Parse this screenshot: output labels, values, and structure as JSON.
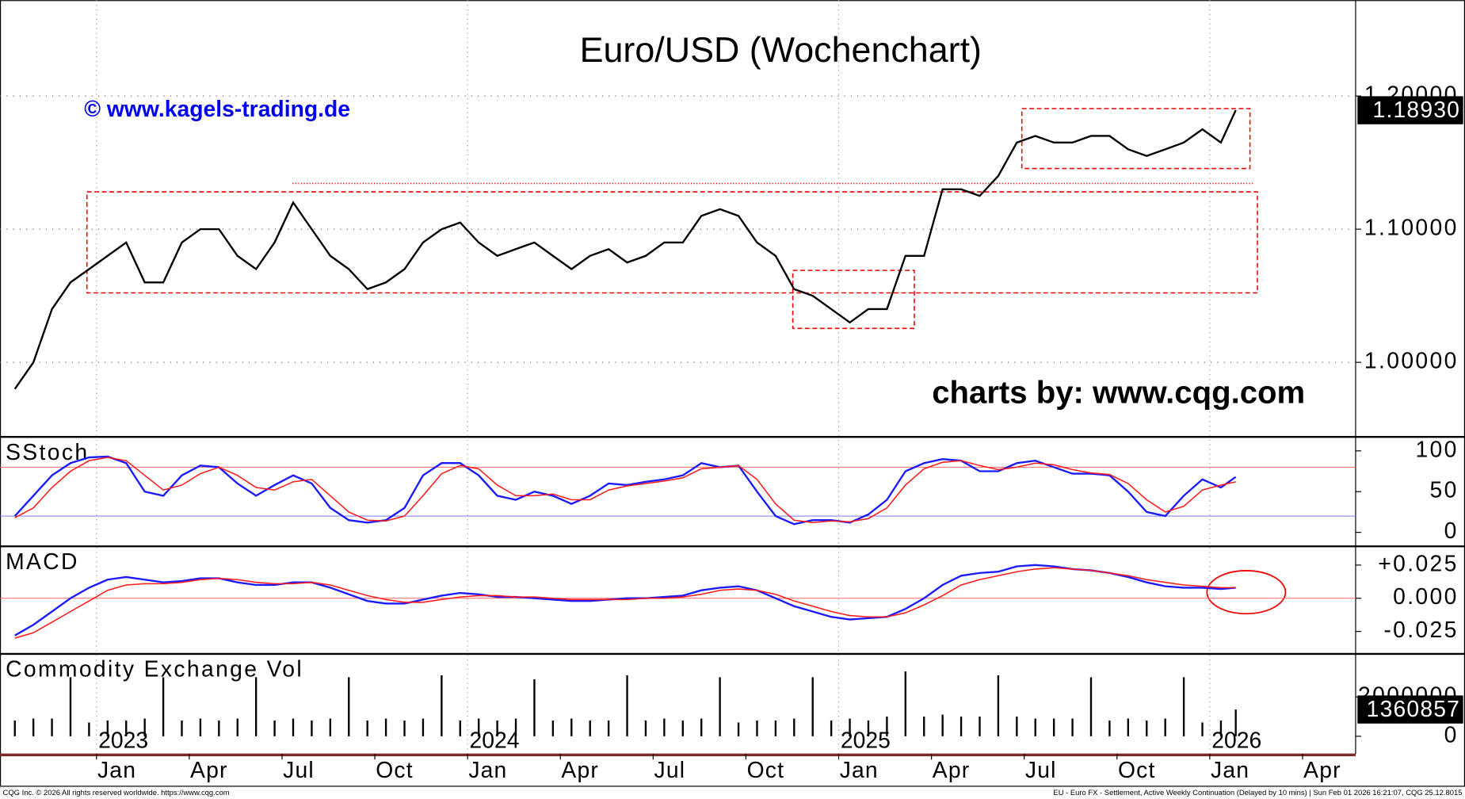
{
  "chart_data": {
    "type": "line",
    "title": "Euro/USD (Wochenchart)",
    "annotations": [
      "© www.kagels-trading.de",
      "charts by: www.cqg.com"
    ],
    "footer": [
      "CQG Inc. © 2026 All rights reserved worldwide. https://www.cqg.com",
      "EU - Euro FX - Settlement, Active Weekly Continuation (Delayed by 10 mins) | Sun Feb 01 2026 16:21:07, CQG 25.12.8015"
    ],
    "x": [
      2022.78,
      2022.83,
      2022.88,
      2022.93,
      2022.98,
      2023.03,
      2023.08,
      2023.13,
      2023.18,
      2023.23,
      2023.28,
      2023.33,
      2023.38,
      2023.43,
      2023.48,
      2023.53,
      2023.58,
      2023.63,
      2023.68,
      2023.73,
      2023.78,
      2023.83,
      2023.88,
      2023.93,
      2023.98,
      2024.03,
      2024.08,
      2024.13,
      2024.18,
      2024.23,
      2024.28,
      2024.33,
      2024.38,
      2024.43,
      2024.48,
      2024.53,
      2024.58,
      2024.63,
      2024.68,
      2024.73,
      2024.78,
      2024.83,
      2024.88,
      2024.93,
      2024.98,
      2025.03,
      2025.08,
      2025.13,
      2025.18,
      2025.23,
      2025.28,
      2025.33,
      2025.38,
      2025.43,
      2025.48,
      2025.53,
      2025.58,
      2025.63,
      2025.68,
      2025.73,
      2025.78,
      2025.83,
      2025.88,
      2025.93,
      2025.98,
      2026.03,
      2026.07
    ],
    "xlim": [
      2022.74,
      2026.393
    ],
    "xticks": [
      {
        "value": 2023,
        "label": "Jan"
      },
      {
        "value": 2023.25,
        "label": "Apr"
      },
      {
        "value": 2023.5,
        "label": "Jul"
      },
      {
        "value": 2023.75,
        "label": "Oct"
      },
      {
        "value": 2024,
        "label": "Jan"
      },
      {
        "value": 2024.25,
        "label": "Apr"
      },
      {
        "value": 2024.5,
        "label": "Jul"
      },
      {
        "value": 2024.75,
        "label": "Oct"
      },
      {
        "value": 2025,
        "label": "Jan"
      },
      {
        "value": 2025.25,
        "label": "Apr"
      },
      {
        "value": 2025.5,
        "label": "Jul"
      },
      {
        "value": 2025.75,
        "label": "Oct"
      },
      {
        "value": 2026,
        "label": "Jan"
      },
      {
        "value": 2026.25,
        "label": "Apr"
      }
    ],
    "years": [
      2023,
      2024,
      2025,
      2026
    ],
    "panels": [
      {
        "type": "line",
        "ylim": [
          0.944,
          1.272
        ],
        "yticks": [
          {
            "value": 1.0,
            "label": "1.00000"
          },
          {
            "value": 1.1,
            "label": "1.10000"
          },
          {
            "value": 1.2,
            "label": "1.20000"
          }
        ],
        "grid": true,
        "last_value": {
          "value": 1.1893,
          "label": "1.18930"
        },
        "series": [
          {
            "color": "#000000",
            "values": [
              0.98,
              1.0,
              1.04,
              1.06,
              1.07,
              1.08,
              1.09,
              1.06,
              1.06,
              1.09,
              1.1,
              1.1,
              1.08,
              1.07,
              1.09,
              1.12,
              1.1,
              1.08,
              1.07,
              1.055,
              1.06,
              1.07,
              1.09,
              1.1,
              1.105,
              1.09,
              1.08,
              1.085,
              1.09,
              1.08,
              1.07,
              1.08,
              1.085,
              1.075,
              1.08,
              1.09,
              1.09,
              1.11,
              1.115,
              1.11,
              1.09,
              1.08,
              1.055,
              1.05,
              1.04,
              1.03,
              1.04,
              1.04,
              1.08,
              1.08,
              1.13,
              1.13,
              1.125,
              1.14,
              1.165,
              1.17,
              1.165,
              1.165,
              1.17,
              1.17,
              1.16,
              1.155,
              1.16,
              1.165,
              1.175,
              1.165,
              1.1893
            ]
          }
        ]
      },
      {
        "type": "line",
        "label": "SStoch",
        "ylim": [
          -16,
          116
        ],
        "yticks": [
          0,
          50,
          100
        ],
        "reference_lines": [
          {
            "value": 80,
            "color": "#ff6666"
          },
          {
            "value": 20,
            "color": "#6666ff"
          }
        ],
        "series": [
          {
            "color": "#1a1aff",
            "values": [
              20,
              45,
              70,
              85,
              92,
              93,
              85,
              50,
              45,
              70,
              82,
              80,
              60,
              45,
              58,
              70,
              60,
              30,
              15,
              12,
              15,
              30,
              70,
              85,
              85,
              70,
              45,
              40,
              50,
              45,
              35,
              45,
              60,
              58,
              62,
              65,
              70,
              85,
              80,
              82,
              50,
              20,
              10,
              15,
              15,
              12,
              22,
              40,
              75,
              85,
              90,
              88,
              75,
              75,
              85,
              88,
              80,
              72,
              72,
              70,
              50,
              25,
              20,
              45,
              65,
              55,
              68
            ]
          },
          {
            "color": "#ff1a1a",
            "values": [
              18,
              30,
              55,
              75,
              88,
              92,
              88,
              70,
              52,
              58,
              72,
              80,
              70,
              55,
              52,
              62,
              65,
              45,
              25,
              15,
              14,
              20,
              45,
              72,
              82,
              78,
              58,
              45,
              45,
              47,
              40,
              40,
              52,
              57,
              60,
              63,
              67,
              78,
              80,
              82,
              65,
              35,
              15,
              12,
              14,
              13,
              17,
              30,
              58,
              78,
              86,
              88,
              82,
              77,
              80,
              85,
              83,
              77,
              73,
              71,
              60,
              40,
              25,
              32,
              52,
              58,
              62
            ]
          }
        ]
      },
      {
        "type": "line",
        "label": "MACD",
        "ylim": [
          -0.0412,
          0.0384
        ],
        "yticks": [
          {
            "value": -0.025,
            "label": "-0.025"
          },
          {
            "value": 0,
            "label": "0.000"
          },
          {
            "value": 0.025,
            "label": "+0.025"
          }
        ],
        "reference_lines": [
          {
            "value": 0,
            "color": "#ff6666"
          }
        ],
        "series": [
          {
            "color": "#1a1aff",
            "values": [
              -0.028,
              -0.02,
              -0.01,
              0,
              0.008,
              0.014,
              0.016,
              0.014,
              0.012,
              0.013,
              0.015,
              0.015,
              0.012,
              0.01,
              0.01,
              0.012,
              0.012,
              0.008,
              0.003,
              -0.002,
              -0.004,
              -0.004,
              -0.001,
              0.002,
              0.004,
              0.003,
              0.001,
              0.001,
              0,
              -0.001,
              -0.002,
              -0.002,
              -0.001,
              0,
              0,
              0.001,
              0.002,
              0.006,
              0.008,
              0.009,
              0.006,
              0,
              -0.006,
              -0.01,
              -0.014,
              -0.016,
              -0.015,
              -0.014,
              -0.008,
              0,
              0.01,
              0.017,
              0.019,
              0.02,
              0.024,
              0.025,
              0.024,
              0.022,
              0.021,
              0.019,
              0.016,
              0.012,
              0.009,
              0.008,
              0.008,
              0.007,
              0.008
            ]
          },
          {
            "color": "#ff1a1a",
            "values": [
              -0.03,
              -0.026,
              -0.018,
              -0.01,
              -0.002,
              0.006,
              0.01,
              0.011,
              0.011,
              0.012,
              0.014,
              0.015,
              0.014,
              0.012,
              0.011,
              0.011,
              0.012,
              0.01,
              0.006,
              0.002,
              -0.001,
              -0.003,
              -0.003,
              -0.001,
              0.001,
              0.002,
              0.002,
              0.001,
              0.001,
              0,
              -0.001,
              -0.001,
              -0.001,
              -0.001,
              0,
              0,
              0.001,
              0.003,
              0.006,
              0.007,
              0.006,
              0.003,
              -0.002,
              -0.006,
              -0.01,
              -0.013,
              -0.014,
              -0.014,
              -0.011,
              -0.005,
              0.002,
              0.01,
              0.014,
              0.017,
              0.02,
              0.022,
              0.023,
              0.022,
              0.021,
              0.019,
              0.017,
              0.014,
              0.012,
              0.01,
              0.009,
              0.008,
              0.008
            ]
          }
        ]
      },
      {
        "type": "bar",
        "label": "Commodity Exchange Vol",
        "ylim": [
          -900000,
          4140000
        ],
        "yticks": [
          0,
          2000000
        ],
        "last_value": {
          "value": 1360857,
          "label": "1360857"
        },
        "series": [
          {
            "color": "#000000",
            "values": [
              800000,
              900000,
              900000,
              3000000,
              700000,
              800000,
              800000,
              900000,
              3000000,
              800000,
              900000,
              800000,
              900000,
              3000000,
              800000,
              900000,
              800000,
              900000,
              3000000,
              800000,
              900000,
              800000,
              900000,
              3100000,
              800000,
              900000,
              800000,
              900000,
              2900000,
              800000,
              900000,
              800000,
              800000,
              3100000,
              800000,
              900000,
              800000,
              900000,
              3000000,
              700000,
              800000,
              800000,
              900000,
              3000000,
              800000,
              900000,
              800000,
              1000000,
              3300000,
              1000000,
              1100000,
              1000000,
              1000000,
              3100000,
              1000000,
              900000,
              900000,
              900000,
              3000000,
              800000,
              900000,
              800000,
              900000,
              3000000,
              700000,
              800000,
              1360857
            ]
          }
        ]
      }
    ]
  }
}
